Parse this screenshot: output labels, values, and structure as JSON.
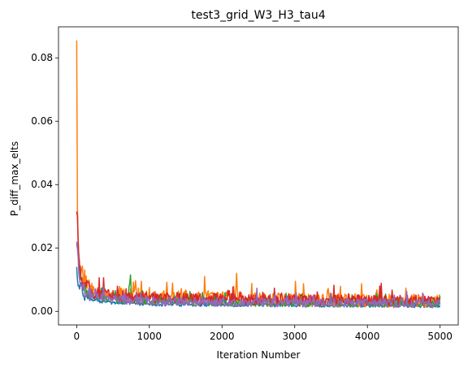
{
  "chart_data": {
    "type": "line",
    "title": "test3_grid_W3_H3_tau4",
    "xlabel": "Iteration Number",
    "ylabel": "P_diff_max_elts",
    "xlim": [
      -250,
      5250
    ],
    "ylim": [
      -0.0043,
      0.0898
    ],
    "xticks": [
      0,
      1000,
      2000,
      3000,
      4000,
      5000
    ],
    "yticks": [
      0.0,
      0.02,
      0.04,
      0.06,
      0.08
    ],
    "ytick_labels": [
      "0.00",
      "0.02",
      "0.04",
      "0.06",
      "0.08"
    ],
    "grid": false,
    "legend": "none",
    "series": [
      {
        "color": "#1f77b4",
        "x": [
          0,
          10,
          20,
          40,
          60,
          80,
          100,
          150,
          200,
          300,
          400,
          500,
          700,
          1000,
          1500,
          2000,
          2500,
          3000,
          3500,
          4000,
          4500,
          5000
        ],
        "values": [
          0.014,
          0.01,
          0.008,
          0.007,
          0.009,
          0.006,
          0.004,
          0.004,
          0.0035,
          0.003,
          0.0028,
          0.0025,
          0.0023,
          0.002,
          0.002,
          0.0019,
          0.0018,
          0.0018,
          0.0017,
          0.0017,
          0.0016,
          0.0016
        ],
        "noise": 0.0012
      },
      {
        "color": "#ff7f0e",
        "x": [
          0,
          5,
          10,
          15,
          20,
          30,
          40,
          60,
          80,
          100,
          120,
          150,
          180,
          200,
          250,
          300,
          400,
          500,
          700,
          1000,
          1500,
          2000,
          2180,
          2200,
          2220,
          2500,
          3000,
          3500,
          4000,
          4500,
          5000
        ],
        "values": [
          0.0855,
          0.048,
          0.033,
          0.027,
          0.022,
          0.018,
          0.016,
          0.012,
          0.01,
          0.009,
          0.008,
          0.007,
          0.0065,
          0.006,
          0.0055,
          0.005,
          0.0048,
          0.0046,
          0.0043,
          0.004,
          0.0035,
          0.0033,
          0.0032,
          0.012,
          0.0032,
          0.003,
          0.003,
          0.0028,
          0.0027,
          0.0026,
          0.0025
        ],
        "noise": 0.0045
      },
      {
        "color": "#2ca02c",
        "x": [
          0,
          20,
          40,
          60,
          80,
          100,
          150,
          200,
          300,
          500,
          700,
          740,
          760,
          1000,
          1500,
          2000,
          2500,
          3000,
          3500,
          4000,
          4500,
          5000
        ],
        "values": [
          0.021,
          0.018,
          0.013,
          0.01,
          0.008,
          0.006,
          0.005,
          0.0045,
          0.004,
          0.0035,
          0.0032,
          0.0115,
          0.0032,
          0.003,
          0.0028,
          0.0025,
          0.0024,
          0.0023,
          0.0022,
          0.0021,
          0.0021,
          0.002
        ],
        "noise": 0.0025
      },
      {
        "color": "#d62728",
        "x": [
          0,
          10,
          20,
          30,
          40,
          60,
          80,
          100,
          150,
          200,
          300,
          500,
          700,
          1000,
          1500,
          2000,
          2500,
          3000,
          3500,
          4000,
          4500,
          5000
        ],
        "values": [
          0.0315,
          0.03,
          0.022,
          0.017,
          0.013,
          0.01,
          0.008,
          0.007,
          0.006,
          0.0055,
          0.005,
          0.0045,
          0.004,
          0.0038,
          0.0036,
          0.0034,
          0.0032,
          0.0031,
          0.003,
          0.003,
          0.0029,
          0.0028
        ],
        "noise": 0.0035
      },
      {
        "color": "#9467bd",
        "x": [
          0,
          10,
          20,
          30,
          40,
          60,
          80,
          100,
          150,
          200,
          300,
          500,
          700,
          1000,
          1500,
          2000,
          2500,
          3000,
          3500,
          4000,
          4500,
          5000
        ],
        "values": [
          0.022,
          0.02,
          0.017,
          0.012,
          0.01,
          0.008,
          0.007,
          0.006,
          0.005,
          0.0045,
          0.004,
          0.0035,
          0.003,
          0.0028,
          0.0026,
          0.0025,
          0.0024,
          0.0023,
          0.0023,
          0.0022,
          0.0022,
          0.0021
        ],
        "noise": 0.0028
      }
    ]
  }
}
